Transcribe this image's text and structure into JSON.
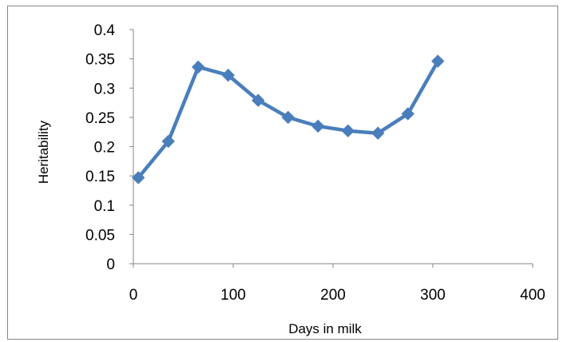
{
  "chart_data": {
    "type": "scatter",
    "xlabel": "Days in milk",
    "ylabel": "Heritability",
    "xlim": [
      0,
      400
    ],
    "ylim": [
      0,
      0.4
    ],
    "xticks": [
      0,
      100,
      200,
      300,
      400
    ],
    "yticks": [
      0,
      0.05,
      0.1,
      0.15,
      0.2,
      0.25,
      0.3,
      0.35,
      0.4
    ],
    "xtick_labels": [
      "0",
      "100",
      "200",
      "300",
      "400"
    ],
    "ytick_labels": [
      "0",
      "0.05",
      "0.1",
      "0.15",
      "0.2",
      "0.25",
      "0.3",
      "0.35",
      "0.4"
    ],
    "grid": false,
    "legend": "none",
    "marker": "diamond",
    "series": [
      {
        "color": "#4a7ebb",
        "points": [
          {
            "x": 5,
            "y": 0.147
          },
          {
            "x": 35,
            "y": 0.209
          },
          {
            "x": 65,
            "y": 0.336
          },
          {
            "x": 95,
            "y": 0.322
          },
          {
            "x": 125,
            "y": 0.279
          },
          {
            "x": 155,
            "y": 0.25
          },
          {
            "x": 185,
            "y": 0.235
          },
          {
            "x": 215,
            "y": 0.227
          },
          {
            "x": 245,
            "y": 0.223
          },
          {
            "x": 275,
            "y": 0.256
          },
          {
            "x": 305,
            "y": 0.346
          }
        ]
      }
    ]
  }
}
